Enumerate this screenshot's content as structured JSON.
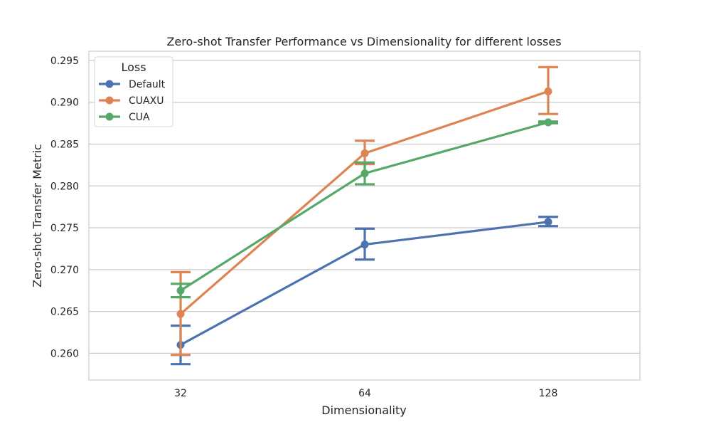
{
  "chart_data": {
    "type": "line",
    "title": "Zero-shot Transfer Performance vs Dimensionality for different losses",
    "xlabel": "Dimensionality",
    "ylabel": "Zero-shot Transfer Metric",
    "categories": [
      "32",
      "64",
      "128"
    ],
    "ylim": [
      0.2568,
      0.2961
    ],
    "yticks": [
      "0.260",
      "0.265",
      "0.270",
      "0.275",
      "0.280",
      "0.285",
      "0.290",
      "0.295"
    ],
    "grid": "horizontal",
    "legend": {
      "title": "Loss",
      "placement": "top-left"
    },
    "series": [
      {
        "name": "Default",
        "color": "#4c72b0",
        "values": [
          0.261,
          0.273,
          0.2757
        ],
        "err_low": [
          0.2587,
          0.2712,
          0.2752
        ],
        "err_high": [
          0.2633,
          0.2749,
          0.2763
        ]
      },
      {
        "name": "CUAXU",
        "color": "#dd8452",
        "values": [
          0.2647,
          0.2839,
          0.2913
        ],
        "err_low": [
          0.2598,
          0.2826,
          0.2886
        ],
        "err_high": [
          0.2697,
          0.2854,
          0.2942
        ]
      },
      {
        "name": "CUA",
        "color": "#55a868",
        "values": [
          0.2675,
          0.2815,
          0.2876
        ],
        "err_low": [
          0.2667,
          0.2802,
          0.2875
        ],
        "err_high": [
          0.2683,
          0.2828,
          0.2877
        ]
      }
    ]
  }
}
